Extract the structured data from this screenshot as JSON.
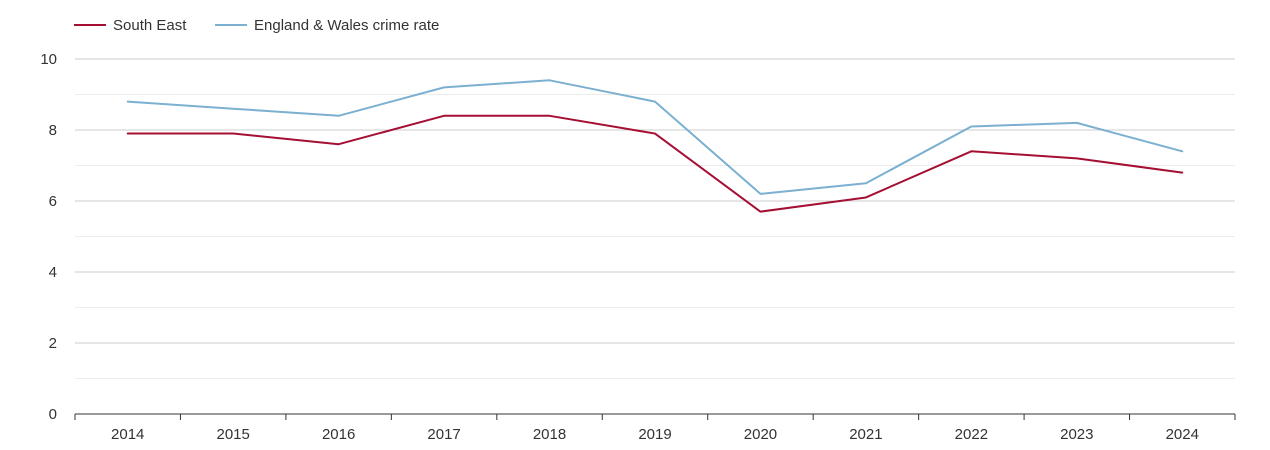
{
  "chart_data": {
    "type": "line",
    "title": "",
    "xlabel": "",
    "ylabel": "",
    "ylim": [
      0,
      10
    ],
    "yticks": [
      0,
      2,
      4,
      6,
      8,
      10
    ],
    "minor_grid_step": 1,
    "categories": [
      "2014",
      "2015",
      "2016",
      "2017",
      "2018",
      "2019",
      "2020",
      "2021",
      "2022",
      "2023",
      "2024"
    ],
    "series": [
      {
        "name": "South East",
        "color": "#a50f33",
        "values": [
          7.9,
          7.9,
          7.6,
          8.4,
          8.4,
          7.9,
          5.7,
          6.1,
          7.4,
          7.2,
          6.8
        ]
      },
      {
        "name": "England & Wales crime rate",
        "color": "#7bb0d0",
        "values": [
          8.8,
          8.6,
          8.4,
          9.2,
          9.4,
          8.8,
          6.2,
          6.5,
          8.1,
          8.2,
          7.4
        ]
      }
    ],
    "legend": "top-left",
    "grid": true
  }
}
